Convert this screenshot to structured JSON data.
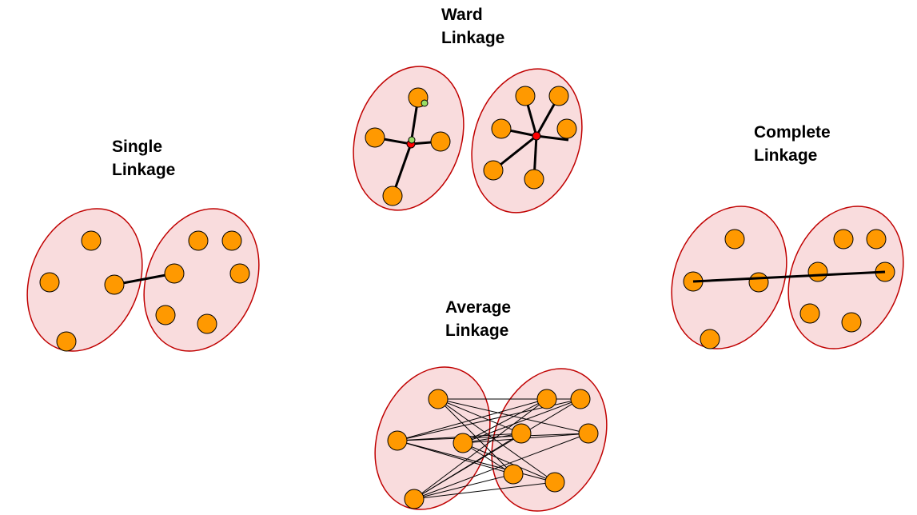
{
  "diagram": {
    "colors": {
      "point": "#ff9900",
      "cluster_fill": "#f9dcdd",
      "cluster_stroke": "#c00000",
      "centroid": "#ff0000",
      "cluster_mean": "#99dd66"
    },
    "panels": {
      "single": {
        "title_line1": "Single",
        "title_line2": "Linkage"
      },
      "ward": {
        "title_line1": "Ward",
        "title_line2": "Linkage"
      },
      "complete": {
        "title_line1": "Complete",
        "title_line2": "Linkage"
      },
      "average": {
        "title_line1": "Average",
        "title_line2": "Linkage"
      }
    }
  }
}
